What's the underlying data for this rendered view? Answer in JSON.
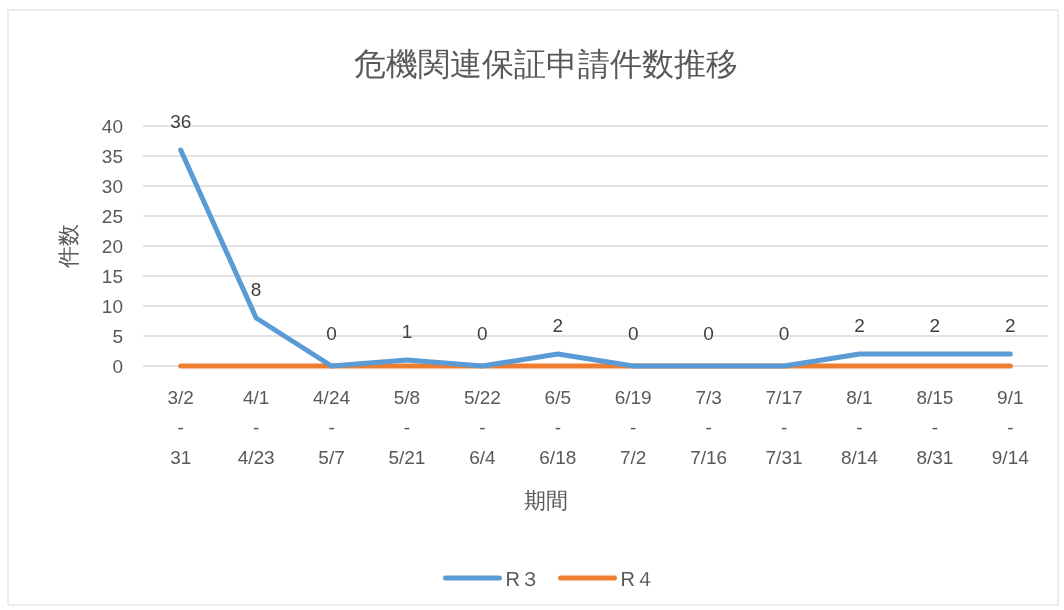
{
  "chart_data": {
    "type": "line",
    "title": "危機関連保証申請件数推移",
    "xlabel": "期間",
    "ylabel": "件数",
    "categories": [
      "3/2\n-\n31",
      "4/1\n-\n4/23",
      "4/24\n-\n5/7",
      "5/8\n-\n5/21",
      "5/22\n-\n6/4",
      "6/5\n-\n6/18",
      "6/19\n-\n7/2",
      "7/3\n-\n7/16",
      "7/17\n-\n7/31",
      "8/1\n-\n8/14",
      "8/15\n-\n8/31",
      "9/1\n-\n9/14"
    ],
    "series": [
      {
        "name": "R３",
        "color": "#5b9bd5",
        "values": [
          36,
          8,
          0,
          1,
          0,
          2,
          0,
          0,
          0,
          2,
          2,
          2
        ],
        "value_labels": [
          "36",
          "8",
          "0",
          "1",
          "0",
          "2",
          "0",
          "0",
          "0",
          "2",
          "2",
          "2"
        ]
      },
      {
        "name": "R４",
        "color": "#ed7d31",
        "values": [
          0,
          0,
          0,
          0,
          0,
          0,
          0,
          0,
          0,
          0,
          0,
          0
        ]
      }
    ],
    "ylim": [
      0,
      40
    ],
    "yticks": [
      0,
      5,
      10,
      15,
      20,
      25,
      30,
      35,
      40
    ],
    "grid": "y",
    "legend": "bottom",
    "marker": "none",
    "line_style": "solid"
  }
}
